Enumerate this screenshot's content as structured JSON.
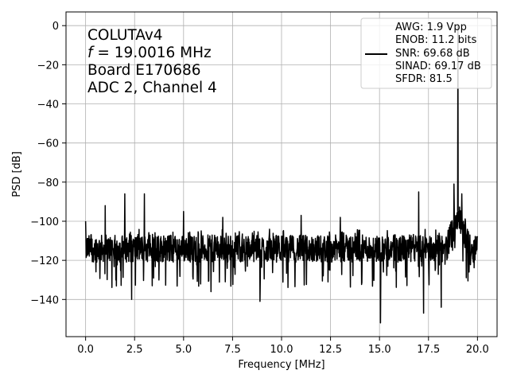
{
  "chart_data": {
    "type": "line",
    "xlabel": "Frequency [MHz]",
    "ylabel": "PSD [dB]",
    "xlim": [
      -1.0,
      21.0
    ],
    "ylim": [
      -159,
      7
    ],
    "xticks": [
      0.0,
      2.5,
      5.0,
      7.5,
      10.0,
      12.5,
      15.0,
      17.5,
      20.0
    ],
    "xtick_labels": [
      "0.0",
      "2.5",
      "5.0",
      "7.5",
      "10.0",
      "12.5",
      "15.0",
      "17.5",
      "20.0"
    ],
    "yticks": [
      0,
      -20,
      -40,
      -60,
      -80,
      -100,
      -120,
      -140
    ],
    "ytick_labels": [
      "0",
      "−20",
      "−40",
      "−60",
      "−80",
      "−100",
      "−120",
      "−140"
    ],
    "grid": true,
    "line_color": "#000000",
    "annotation_lines": {
      "name": "COLUTAv4",
      "freq_prefix": "f",
      "freq_value": " = 19.0016 MHz",
      "board": "Board E170686",
      "channel": "ADC 2, Channel 4"
    },
    "legend": {
      "position": "upper right",
      "lines": [
        "AWG: 1.9 Vpp",
        "ENOB: 11.2 bits",
        "SNR: 69.68 dB",
        "SINAD: 69.17 dB",
        "SFDR: 81.5"
      ]
    },
    "noise_floor": {
      "x_range": [
        0.0,
        20.0
      ],
      "median": -114,
      "band": [
        -127,
        -103
      ]
    },
    "series": [
      {
        "peaks": [
          {
            "x": 0.0,
            "y": -100
          },
          {
            "x": 1.0,
            "y": -92
          },
          {
            "x": 2.0,
            "y": -86
          },
          {
            "x": 3.0,
            "y": -86
          },
          {
            "x": 5.0,
            "y": -95
          },
          {
            "x": 7.0,
            "y": -98
          },
          {
            "x": 11.0,
            "y": -97
          },
          {
            "x": 13.0,
            "y": -98
          },
          {
            "x": 17.0,
            "y": -85
          },
          {
            "x": 18.8,
            "y": -81
          },
          {
            "x": 19.0016,
            "y": 0
          },
          {
            "x": 19.2,
            "y": -86
          }
        ],
        "dips": [
          {
            "x": 2.35,
            "y": -140
          },
          {
            "x": 6.4,
            "y": -136
          },
          {
            "x": 8.9,
            "y": -141
          },
          {
            "x": 15.05,
            "y": -152
          },
          {
            "x": 17.25,
            "y": -147
          },
          {
            "x": 18.15,
            "y": -144
          }
        ]
      }
    ]
  }
}
